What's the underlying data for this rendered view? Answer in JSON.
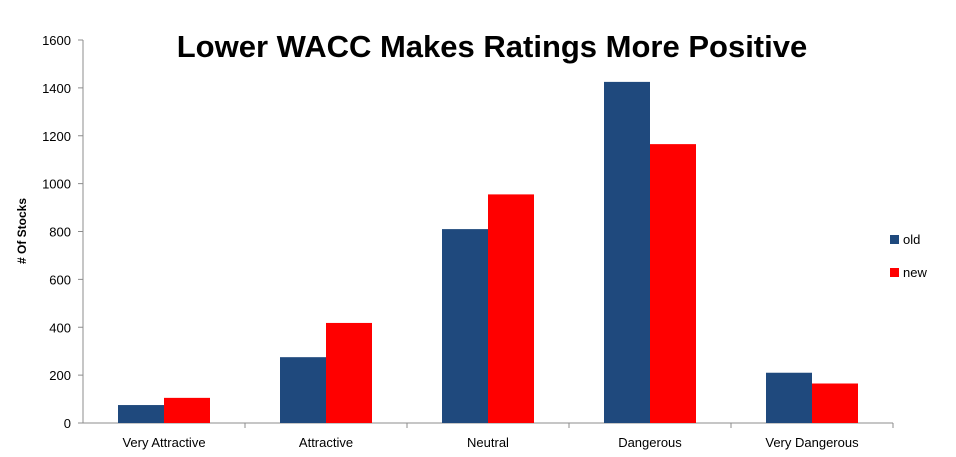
{
  "chart_data": {
    "type": "bar",
    "title": "Lower WACC Makes Ratings More Positive",
    "xlabel": "",
    "ylabel": "# Of Stocks",
    "categories": [
      "Very Attractive",
      "Attractive",
      "Neutral",
      "Dangerous",
      "Very Dangerous"
    ],
    "series": [
      {
        "name": "old",
        "color": "#1f497d",
        "values": [
          75,
          275,
          810,
          1425,
          210
        ]
      },
      {
        "name": "new",
        "color": "#ff0000",
        "values": [
          105,
          418,
          955,
          1165,
          165
        ]
      }
    ],
    "ylim": [
      0,
      1600
    ],
    "yticks": [
      0,
      200,
      400,
      600,
      800,
      1000,
      1200,
      1400,
      1600
    ],
    "grid": false,
    "legend_position": "right"
  }
}
